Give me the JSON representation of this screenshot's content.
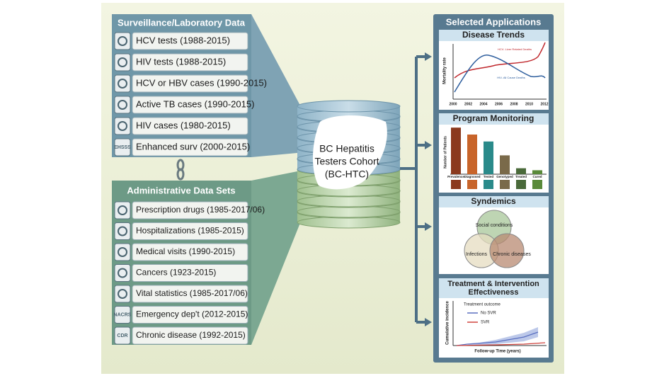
{
  "surveillance": {
    "title": "Surveillance/Laboratory Data",
    "items": [
      {
        "text": "HCV tests (1988-2015)"
      },
      {
        "text": "HIV tests (1988-2015)"
      },
      {
        "text": "HCV or HBV cases (1990-2015)"
      },
      {
        "text": "Active TB cases (1990-2015)"
      },
      {
        "text": "HIV cases (1980-2015)"
      },
      {
        "text": "Enhanced surv (2000-2015)",
        "icon_label": "EHSSS"
      }
    ]
  },
  "administrative": {
    "title": "Administrative Data Sets",
    "items": [
      {
        "text": "Prescription drugs (1985-2017/06)"
      },
      {
        "text": "Hospitalizations (1985-2015)"
      },
      {
        "text": "Medical visits (1990-2015)"
      },
      {
        "text": "Cancers (1923-2015)"
      },
      {
        "text": "Vital statistics (1985-2017/06)"
      },
      {
        "text": "Emergency dep't (2012-2015)",
        "icon_label": "NACRS"
      },
      {
        "text": "Chronic disease (1992-2015)",
        "icon_label": "CDR"
      }
    ]
  },
  "cohort": {
    "lines": [
      "BC Hepatitis",
      "Testers Cohort",
      "(BC-HTC)"
    ]
  },
  "applications": {
    "title": "Selected Applications",
    "disease_trends": {
      "title": "Disease Trends",
      "y_label": "Mortality rate",
      "series_labels": [
        "HCV- Liver Related Deaths",
        "HIV- All Cause Deaths"
      ],
      "years": [
        "2000",
        "2002",
        "2004",
        "2006",
        "2008",
        "2010",
        "2012"
      ]
    },
    "program_monitoring": {
      "title": "Program Monitoring",
      "y_label": "Number of Patients",
      "categories": [
        "Prevalence",
        "Diagnosed",
        "Tested",
        "Genotyped",
        "Treated",
        "Cured"
      ],
      "values": [
        47,
        40,
        33,
        19,
        6,
        4
      ],
      "colors": [
        "#8b3a1e",
        "#c8642a",
        "#2a8a8a",
        "#7a6a4a",
        "#4a6a3a",
        "#5a8a3a"
      ]
    },
    "syndemics": {
      "title": "Syndemics",
      "circles": [
        "Social conditions",
        "Infections",
        "Chronic diseases"
      ]
    },
    "treatment": {
      "title_lines": [
        "Treatment & Intervention",
        "Effectiveness"
      ],
      "legend_title": "Treatment outcome",
      "legend": [
        "No SVR",
        "SVR"
      ],
      "y_label": "Cumulative incidence",
      "x_label": "Follow-up Time (years)"
    }
  }
}
